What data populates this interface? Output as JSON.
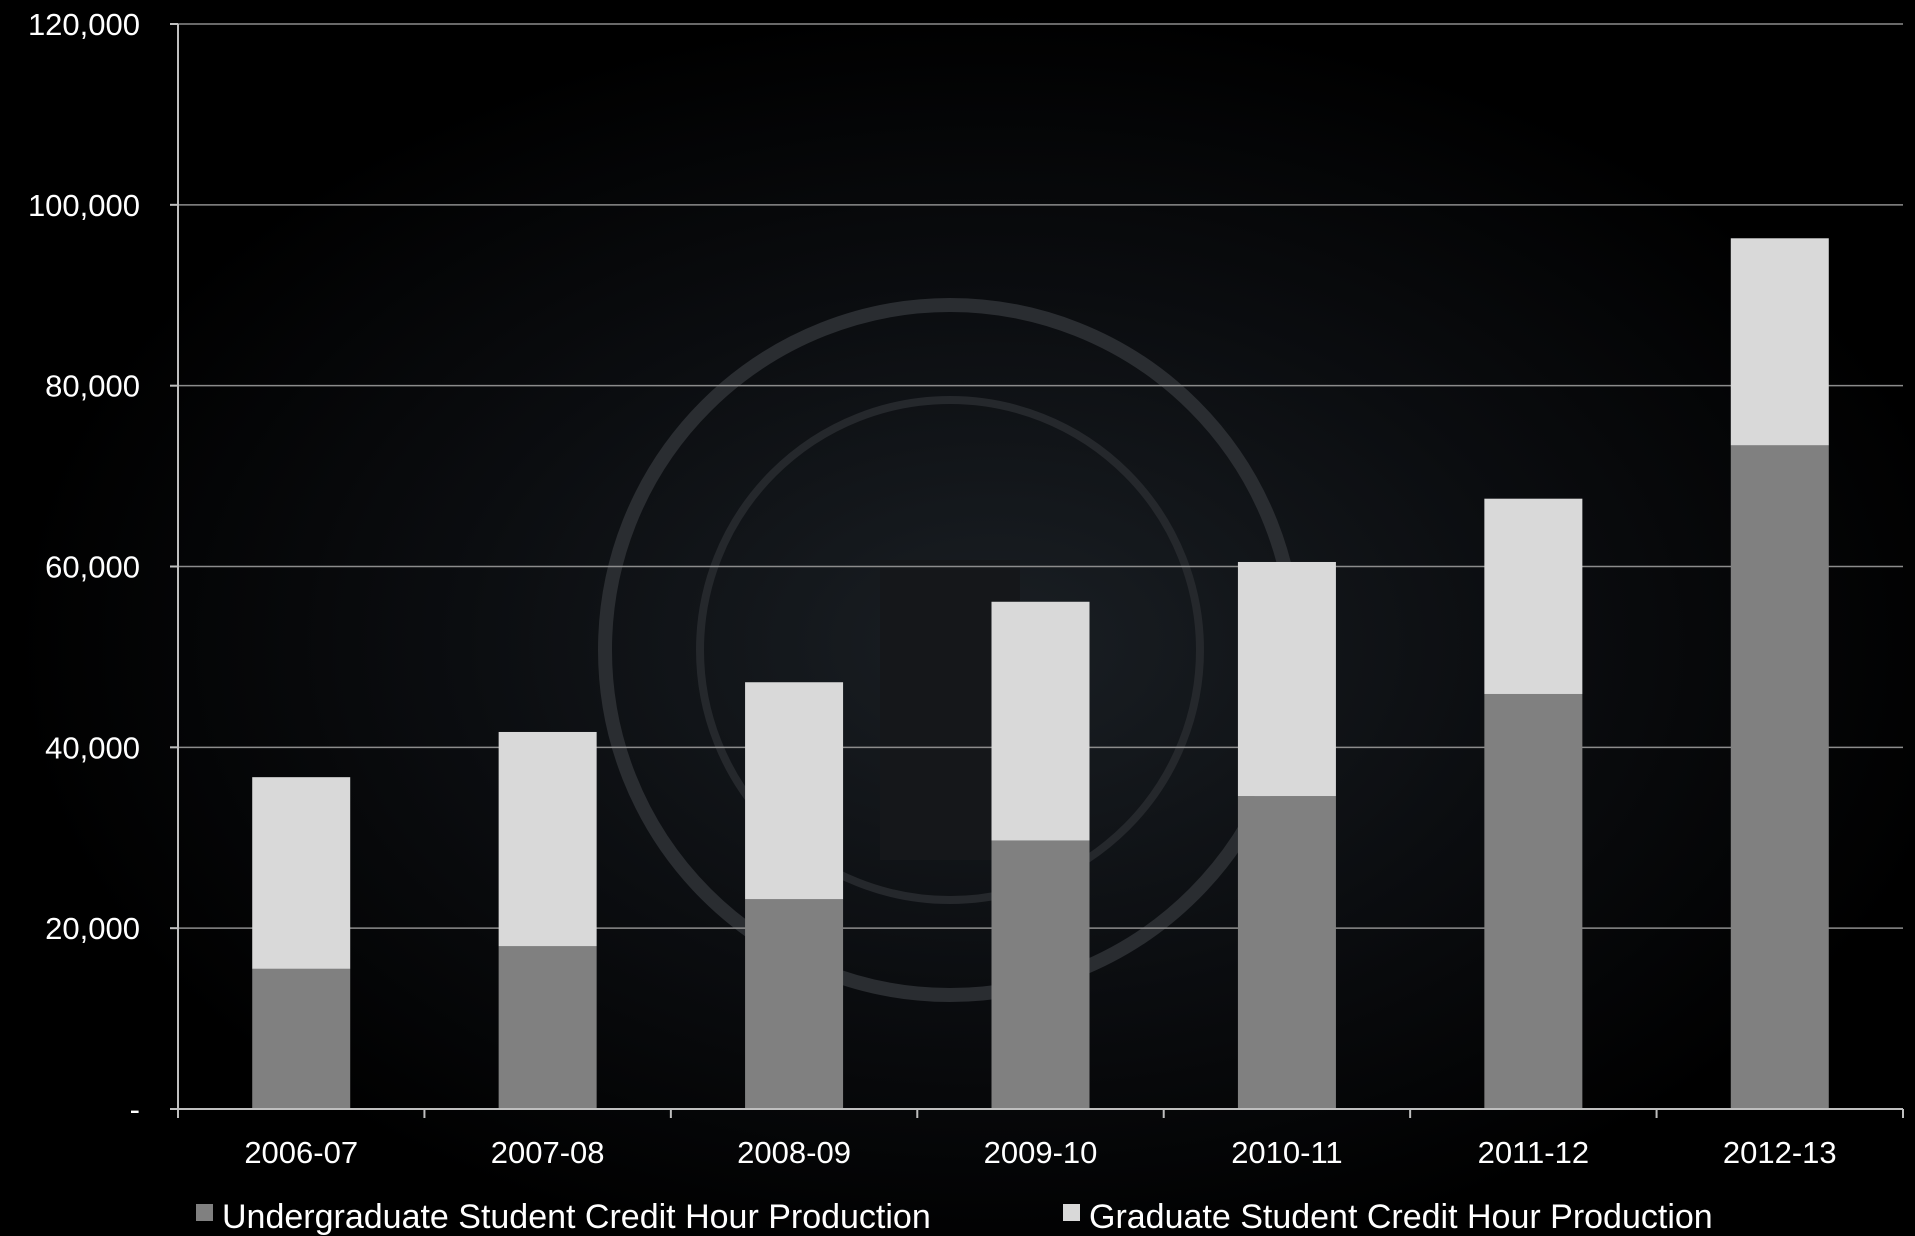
{
  "chart_data": {
    "type": "bar",
    "stacked": true,
    "categories": [
      "2006-07",
      "2007-08",
      "2008-09",
      "2009-10",
      "2010-11",
      "2011-12",
      "2012-13"
    ],
    "series": [
      {
        "name": "Undergraduate Student Credit Hour Production",
        "color": "#808080",
        "values": [
          15500,
          18000,
          23200,
          29700,
          34600,
          45900,
          73400
        ]
      },
      {
        "name": "Graduate Student Credit Hour Production",
        "color": "#d9d9d9",
        "values": [
          21200,
          23700,
          24000,
          26400,
          25900,
          21600,
          22900
        ]
      }
    ],
    "ylim": [
      0,
      120000
    ],
    "yticks": [
      {
        "value": 0,
        "label": "-"
      },
      {
        "value": 20000,
        "label": "20,000"
      },
      {
        "value": 40000,
        "label": "40,000"
      },
      {
        "value": 60000,
        "label": "60,000"
      },
      {
        "value": 80000,
        "label": "80,000"
      },
      {
        "value": 100000,
        "label": "100,000"
      },
      {
        "value": 120000,
        "label": "120,000"
      }
    ],
    "grid": true,
    "legend_position": "bottom",
    "colors": {
      "background": "#000000",
      "grid": "#8c8c8c",
      "axis": "#bfbfbf",
      "text": "#ffffff"
    }
  }
}
